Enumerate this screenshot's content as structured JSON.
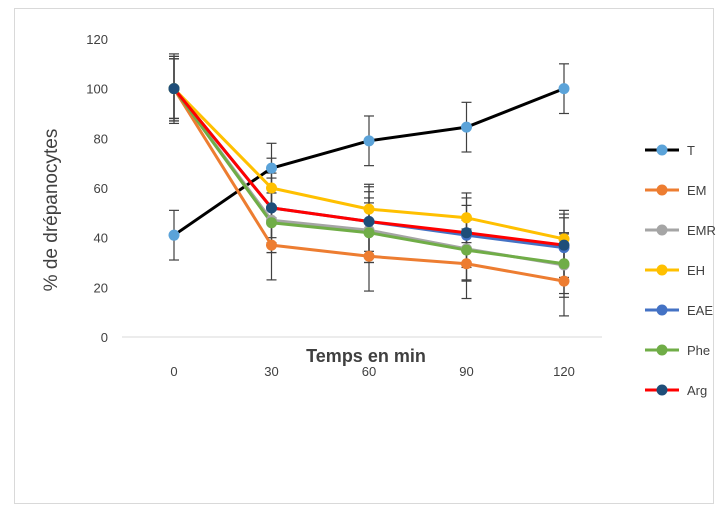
{
  "chart_data": {
    "type": "line",
    "xlabel": "Temps en min",
    "ylabel": "% de drépanocytes",
    "x": [
      0,
      30,
      60,
      90,
      120
    ],
    "x_tick_labels": [
      "0",
      "30",
      "60",
      "90",
      "120"
    ],
    "y_tick_labels": [
      "0",
      "20",
      "40",
      "60",
      "80",
      "100",
      "120"
    ],
    "ylim": [
      0,
      120
    ],
    "grid": false,
    "legend_position": "right",
    "error_bars": true,
    "series": [
      {
        "name": "T",
        "color": "#000000",
        "marker_color": "#5ba3d9",
        "values": [
          41,
          68,
          79,
          84.5,
          100
        ],
        "errors": [
          10,
          10,
          10,
          10,
          10
        ]
      },
      {
        "name": "EM",
        "color": "#ed7d31",
        "marker_color": "#ed7d31",
        "values": [
          100,
          37,
          32.5,
          29.5,
          22.5
        ],
        "errors": [
          13,
          14,
          14,
          14,
          14
        ]
      },
      {
        "name": "EMR",
        "color": "#a5a5a5",
        "marker_color": "#a5a5a5",
        "values": [
          100,
          47,
          43,
          35.5,
          29
        ],
        "errors": [
          13,
          13,
          13,
          13,
          13
        ]
      },
      {
        "name": "EH",
        "color": "#ffc000",
        "marker_color": "#ffc000",
        "values": [
          100,
          60,
          51.5,
          48,
          39.5
        ],
        "errors": [
          12,
          12,
          10,
          10,
          10
        ]
      },
      {
        "name": "EAE",
        "color": "#4472c4",
        "marker_color": "#4472c4",
        "values": [
          100,
          52,
          46.5,
          41,
          36
        ],
        "errors": [
          12,
          12,
          12,
          12,
          12
        ]
      },
      {
        "name": "Phe",
        "color": "#70ad47",
        "marker_color": "#70ad47",
        "values": [
          100,
          46,
          42,
          35,
          29.5
        ],
        "errors": [
          12,
          12,
          12,
          12,
          12
        ]
      },
      {
        "name": "Arg",
        "color": "#ff0000",
        "marker_color": "#1f4e79",
        "values": [
          100,
          52,
          46.5,
          42,
          37
        ],
        "errors": [
          14,
          14,
          14,
          14,
          14
        ]
      }
    ]
  }
}
